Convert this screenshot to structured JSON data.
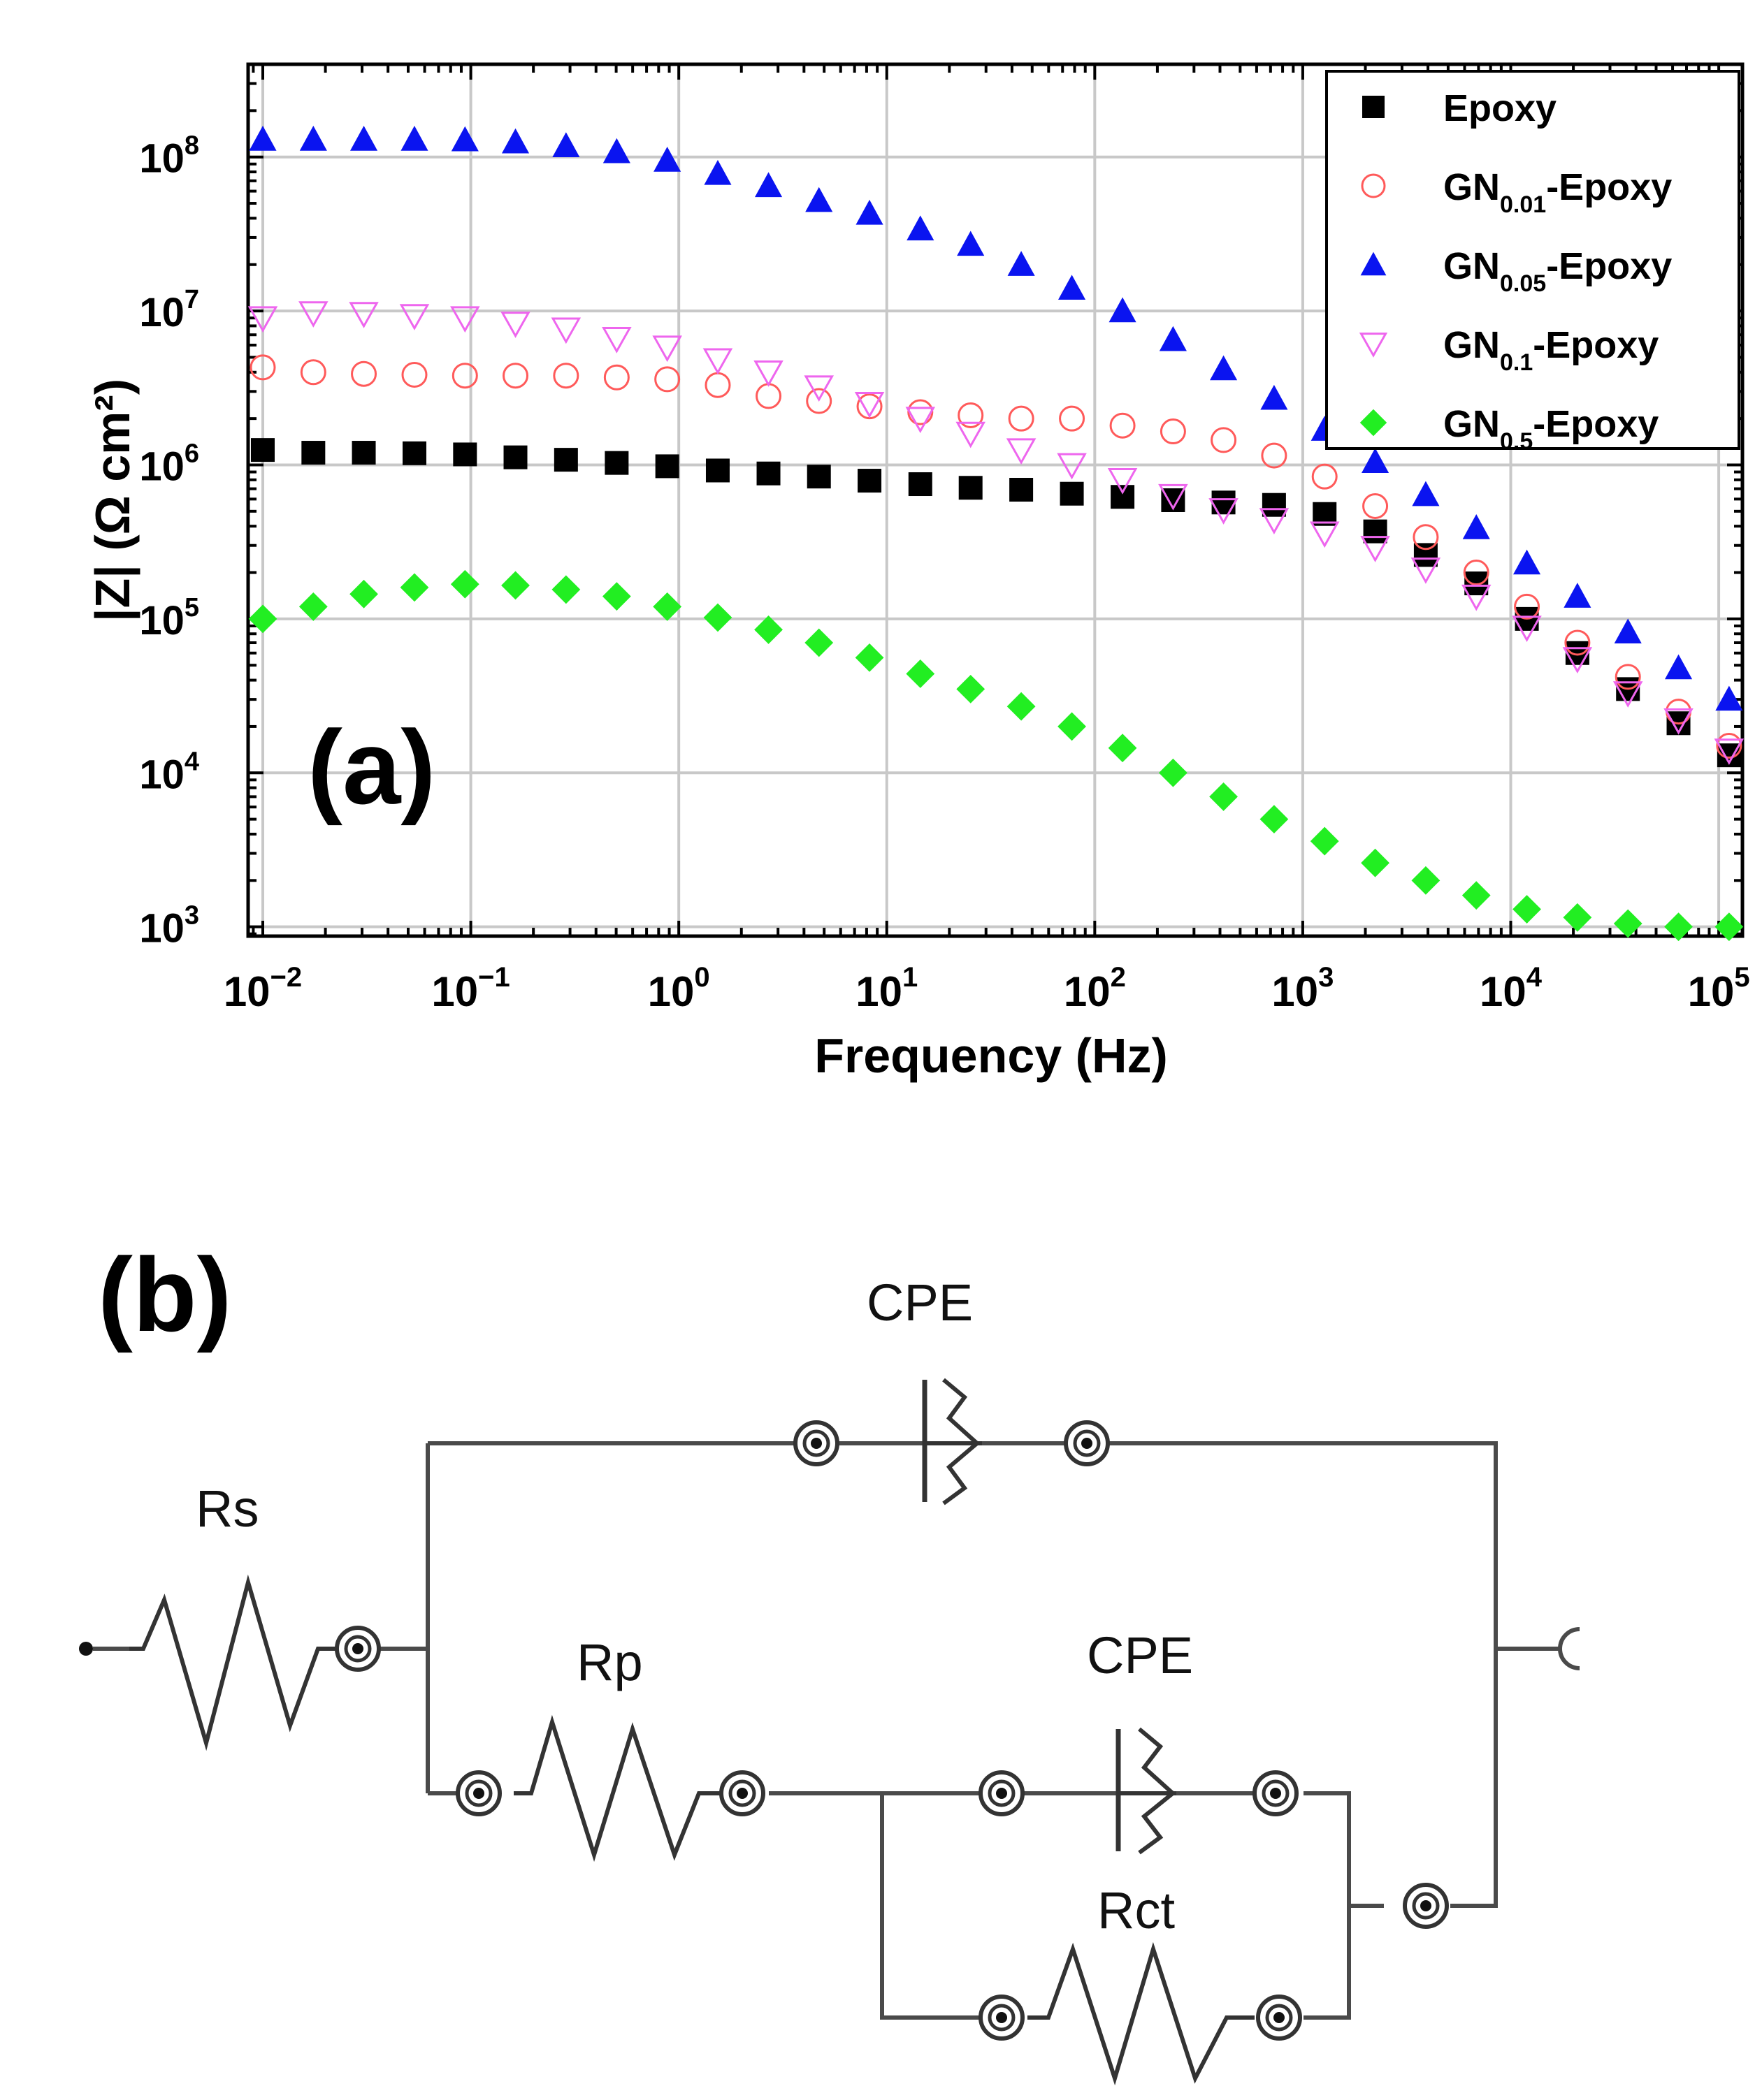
{
  "panel_a_label": "(a)",
  "panel_b_label": "(b)",
  "chart_data": {
    "type": "scatter",
    "title": "",
    "xlabel": "Frequency (Hz)",
    "ylabel": "|Z| (Ω cm²)",
    "xscale": "log",
    "yscale": "log",
    "xlim": [
      0.0085,
      130000
    ],
    "ylim": [
      870,
      400000000
    ],
    "grid": true,
    "legend_position": "top-right",
    "x_ticks": [
      {
        "value": 0.01,
        "base": "10",
        "exp": "−2"
      },
      {
        "value": 0.1,
        "base": "10",
        "exp": "−1"
      },
      {
        "value": 1,
        "base": "10",
        "exp": "0"
      },
      {
        "value": 10,
        "base": "10",
        "exp": "1"
      },
      {
        "value": 100,
        "base": "10",
        "exp": "2"
      },
      {
        "value": 1000,
        "base": "10",
        "exp": "3"
      },
      {
        "value": 10000,
        "base": "10",
        "exp": "4"
      },
      {
        "value": 100000,
        "base": "10",
        "exp": "5"
      }
    ],
    "y_ticks": [
      {
        "value": 1000,
        "base": "10",
        "exp": "3"
      },
      {
        "value": 10000,
        "base": "10",
        "exp": "4"
      },
      {
        "value": 100000,
        "base": "10",
        "exp": "5"
      },
      {
        "value": 1000000,
        "base": "10",
        "exp": "6"
      },
      {
        "value": 10000000,
        "base": "10",
        "exp": "7"
      },
      {
        "value": 100000000,
        "base": "10",
        "exp": "8"
      }
    ],
    "x": [
      0.01,
      0.0175,
      0.0306,
      0.0536,
      0.0938,
      0.164,
      0.287,
      0.503,
      0.88,
      1.54,
      2.7,
      4.72,
      8.26,
      14.5,
      25.3,
      44.3,
      77.6,
      136,
      238,
      416,
      728,
      1274,
      2230,
      3903,
      6830,
      11953,
      20918,
      36607,
      64062,
      112109
    ],
    "series": [
      {
        "name": "Epoxy",
        "legend_main": "Epoxy",
        "legend_sub": "",
        "legend_suffix": "",
        "marker": "square",
        "color": "#000000",
        "filled": true,
        "values": [
          1250000,
          1200000,
          1200000,
          1190000,
          1170000,
          1120000,
          1080000,
          1030000,
          980000,
          920000,
          880000,
          840000,
          790000,
          750000,
          710000,
          690000,
          650000,
          620000,
          590000,
          570000,
          550000,
          480000,
          370000,
          260000,
          170000,
          100000,
          60000,
          35000,
          21000,
          13000
        ]
      },
      {
        "name": "GN0.01-Epoxy",
        "legend_main": "GN",
        "legend_sub": "0.01",
        "legend_suffix": "-Epoxy",
        "marker": "circle",
        "color": "#ff5a5a",
        "filled": false,
        "values": [
          4300000,
          4000000,
          3900000,
          3850000,
          3800000,
          3800000,
          3800000,
          3700000,
          3600000,
          3300000,
          2800000,
          2600000,
          2400000,
          2200000,
          2100000,
          2000000,
          2000000,
          1800000,
          1650000,
          1450000,
          1150000,
          840000,
          540000,
          340000,
          200000,
          120000,
          70000,
          42000,
          25000,
          15000
        ]
      },
      {
        "name": "GN0.05-Epoxy",
        "legend_main": "GN",
        "legend_sub": "0.05",
        "legend_suffix": "-Epoxy",
        "marker": "triangle-up",
        "color": "#0a14f0",
        "filled": true,
        "values": [
          130000000,
          130000000,
          130000000,
          130000000,
          129000000,
          125000000,
          118000000,
          108000000,
          95000000,
          78000000,
          65000000,
          52000000,
          43000000,
          34000000,
          27000000,
          20000000,
          14000000,
          10000000,
          6500000,
          4200000,
          2700000,
          1700000,
          1050000,
          640000,
          390000,
          230000,
          140000,
          82000,
          48000,
          30000
        ]
      },
      {
        "name": "GN0.1-Epoxy",
        "legend_main": "GN",
        "legend_sub": "0.1",
        "legend_suffix": "-Epoxy",
        "marker": "triangle-down",
        "color": "#ee66ee",
        "filled": false,
        "values": [
          9000000,
          9700000,
          9600000,
          9300000,
          9000000,
          8300000,
          7600000,
          6600000,
          5800000,
          4800000,
          4000000,
          3200000,
          2500000,
          2000000,
          1600000,
          1250000,
          1000000,
          800000,
          630000,
          510000,
          440000,
          360000,
          290000,
          210000,
          140000,
          88000,
          55000,
          33000,
          22000,
          14000
        ]
      },
      {
        "name": "GN0.5-Epoxy",
        "legend_main": "GN",
        "legend_sub": "0.5",
        "legend_suffix": "-Epoxy",
        "marker": "diamond",
        "color": "#22ee22",
        "filled": true,
        "values": [
          100000,
          120000,
          145000,
          160000,
          168000,
          165000,
          155000,
          140000,
          120000,
          102000,
          85000,
          70000,
          56000,
          44000,
          35000,
          27000,
          20000,
          14500,
          10000,
          7000,
          5000,
          3600,
          2600,
          2000,
          1600,
          1300,
          1150,
          1050,
          1000,
          1000
        ]
      }
    ]
  },
  "circuit": {
    "elements": [
      {
        "id": "rs",
        "label": "Rs"
      },
      {
        "id": "cpe_top",
        "label": "CPE"
      },
      {
        "id": "rp",
        "label": "Rp"
      },
      {
        "id": "cpe_mid",
        "label": "CPE"
      },
      {
        "id": "rct",
        "label": "Rct"
      }
    ]
  }
}
